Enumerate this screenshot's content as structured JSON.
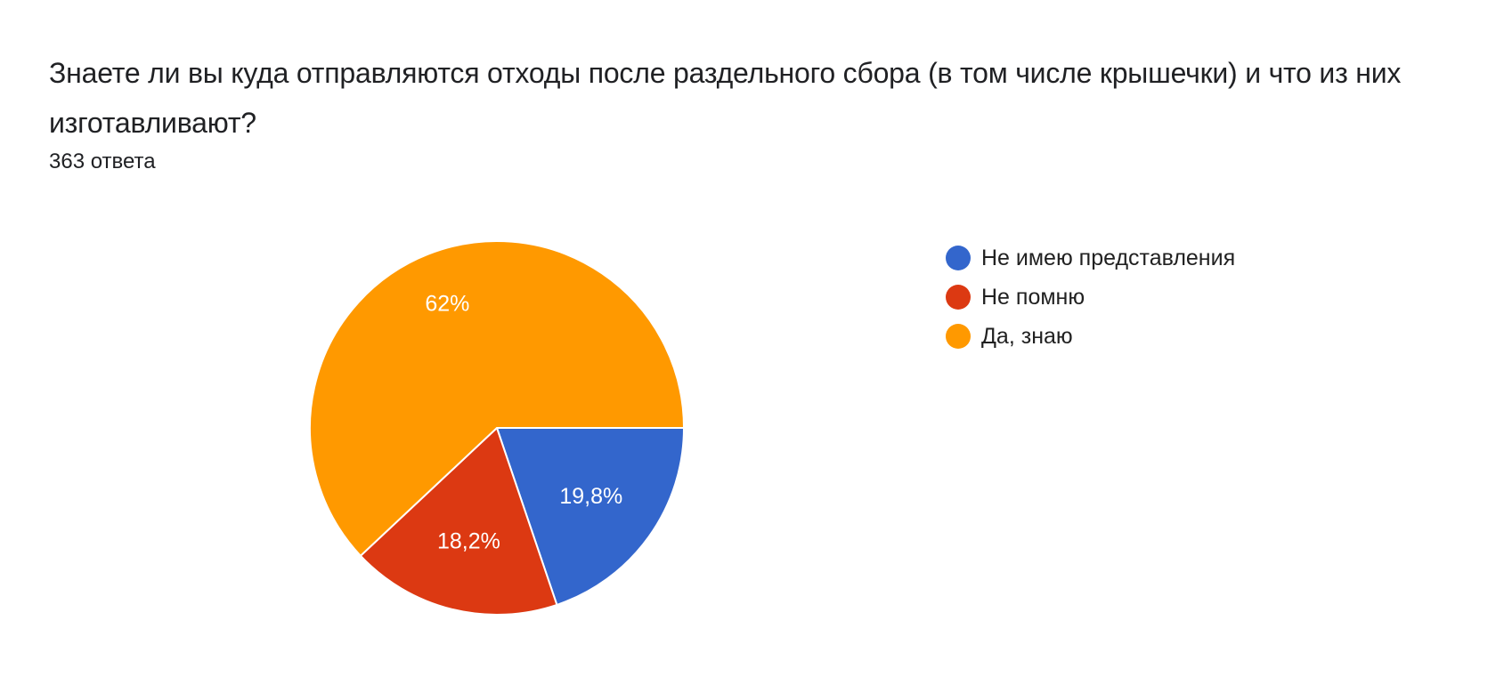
{
  "question": {
    "title": "Знаете ли вы куда отправляются отходы после раздельного сбора (в том числе крышечки) и что из них изготавливают?",
    "responses": "363 ответа"
  },
  "chart_data": {
    "type": "pie",
    "title": "Знаете ли вы куда отправляются отходы после раздельного сбора (в том числе крышечки) и что из них изготавливают?",
    "subtitle": "363 ответа",
    "categories": [
      "Не имею представления",
      "Не помню",
      "Да, знаю"
    ],
    "values": [
      19.8,
      18.2,
      62.0
    ],
    "labels": [
      "19,8%",
      "18,2%",
      "62%"
    ],
    "colors": [
      "#3366cc",
      "#dc3912",
      "#ff9900"
    ],
    "legend_position": "right"
  },
  "legend": {
    "items": [
      {
        "label": "Не имею представления",
        "color": "#3366cc"
      },
      {
        "label": "Не помню",
        "color": "#dc3912"
      },
      {
        "label": "Да, знаю",
        "color": "#ff9900"
      }
    ]
  }
}
